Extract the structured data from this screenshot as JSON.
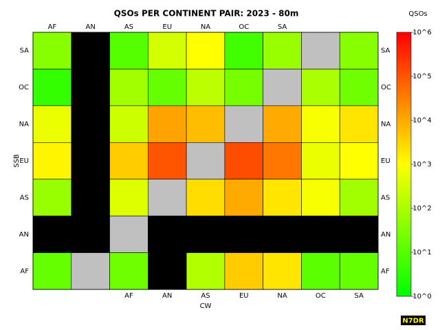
{
  "chart_data": {
    "type": "heatmap",
    "title": "QSOs PER CONTINENT PAIR: 2023 - 80m",
    "xlabel": "CW",
    "ylabel": "SSB",
    "top_categories": [
      "AF",
      "AN",
      "AS",
      "EU",
      "NA",
      "OC",
      "SA"
    ],
    "bottom_categories": [
      "AF",
      "AN",
      "AS",
      "EU",
      "NA",
      "OC",
      "SA"
    ],
    "rows": [
      "SA",
      "OC",
      "NA",
      "EU",
      "AS",
      "AN",
      "AF"
    ],
    "values": [
      [
        40,
        null,
        10,
        300,
        1000,
        6,
        60,
        null,
        40
      ],
      [
        4,
        null,
        80,
        16,
        160,
        25,
        null,
        100,
        20
      ],
      [
        600,
        null,
        250,
        12000,
        6000,
        null,
        10000,
        800,
        2000
      ],
      [
        1300,
        null,
        4000,
        100000,
        null,
        125000,
        40000,
        600,
        1000
      ],
      [
        60,
        null,
        400,
        null,
        2500,
        10000,
        2000,
        800,
        80
      ],
      [
        null,
        null,
        null,
        null,
        null,
        null,
        null,
        null,
        null
      ],
      [
        16,
        null,
        20,
        null,
        125,
        4000,
        2000,
        12,
        16
      ]
    ],
    "colorbar": {
      "label": "QSOs",
      "log": true,
      "lim": [
        1,
        1000000
      ],
      "ticks": [
        {
          "value": 1,
          "label": "10^0"
        },
        {
          "value": 10,
          "label": "10^1"
        },
        {
          "value": 100,
          "label": "10^2"
        },
        {
          "value": 1000,
          "label": "10^3"
        },
        {
          "value": 10000,
          "label": "10^4"
        },
        {
          "value": 100000,
          "label": "10^5"
        },
        {
          "value": 1000000,
          "label": "10^6"
        }
      ],
      "colors": [
        "#00ff00",
        "#ffff00",
        "#ff0000"
      ]
    },
    "footer": "N7DR"
  }
}
